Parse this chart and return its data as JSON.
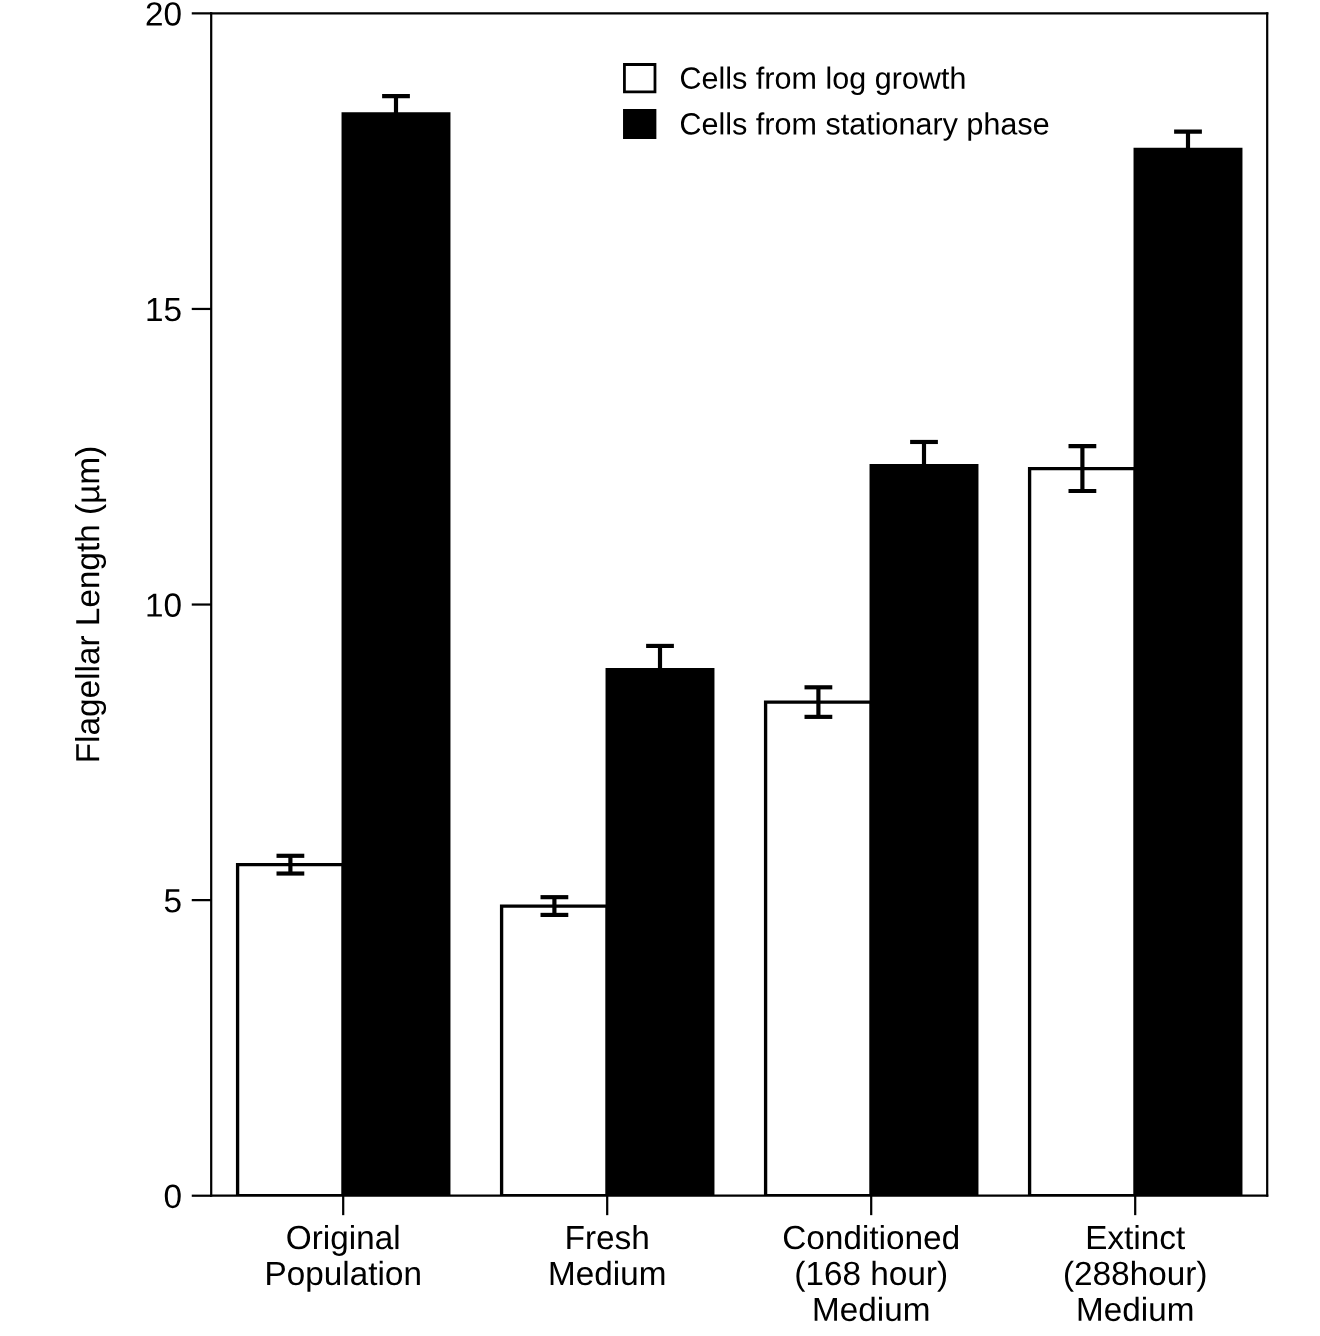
{
  "chart_data": {
    "type": "bar",
    "ylabel": "Flagellar Length (µm)",
    "categories": [
      "Original\nPopulation",
      "Fresh\nMedium",
      "Conditioned\n(168 hour)\nMedium",
      "Extinct\n(288hour)\nMedium"
    ],
    "series": [
      {
        "name": "Cells from log growth",
        "color": "#ffffff",
        "values": [
          5.6,
          4.9,
          8.35,
          12.3
        ],
        "errors": [
          0.15,
          0.15,
          0.25,
          0.38
        ]
      },
      {
        "name": "Cells from stationary phase",
        "color": "#000000",
        "values": [
          18.3,
          8.9,
          12.35,
          17.7
        ],
        "errors": [
          0.3,
          0.4,
          0.4,
          0.3
        ]
      }
    ],
    "ylim": [
      0,
      20
    ],
    "yticks": [
      0,
      5,
      10,
      15,
      20
    ],
    "grid": false,
    "legend": "top right"
  }
}
